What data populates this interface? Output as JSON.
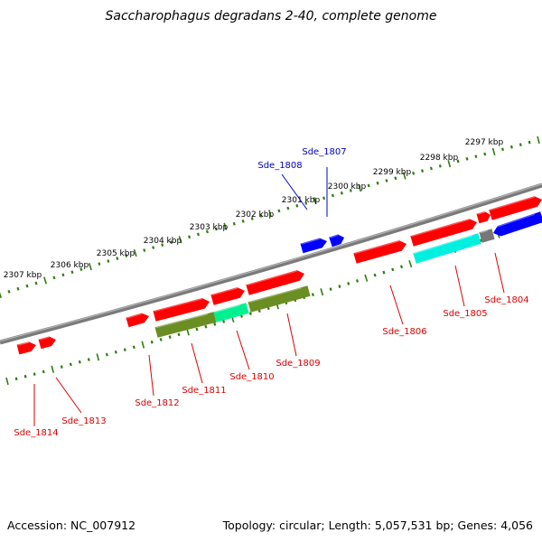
{
  "title": "Saccharophagus degradans 2-40, complete genome",
  "footer": {
    "accession": "Accession: NC_007912",
    "summary": "Topology: circular; Length: 5,057,531 bp; Genes: 4,056"
  },
  "colors": {
    "backbone": "#808080",
    "ticks": "#2e7d0b",
    "gene_red": "#ff0000",
    "gene_blue": "#0000ff",
    "gene_olive": "#6b8e23",
    "gene_cyan": "#00f0e0",
    "gene_spring": "#00f090",
    "gene_gray": "#777777",
    "label_red": "#dd0000",
    "label_blue": "#0000cc"
  },
  "kbp_labels": [
    "2297 kbp",
    "2298 kbp",
    "2299 kbp",
    "2300 kbp",
    "2301 kbp",
    "2302 kbp",
    "2303 kbp",
    "2304 kbp",
    "2305 kbp",
    "2306 kbp",
    "2307 kbp"
  ],
  "gene_labels": [
    "Sde_1807",
    "Sde_1808",
    "Sde_1804",
    "Sde_1805",
    "Sde_1806",
    "Sde_1809",
    "Sde_1810",
    "Sde_1811",
    "Sde_1812",
    "Sde_1813",
    "Sde_1814"
  ]
}
